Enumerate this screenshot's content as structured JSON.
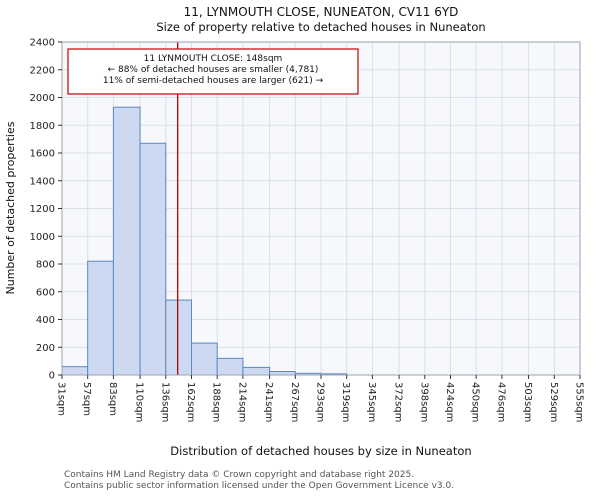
{
  "title": {
    "line1": "11, LYNMOUTH CLOSE, NUNEATON, CV11 6YD",
    "line2": "Size of property relative to detached houses in Nuneaton"
  },
  "footer": {
    "line1": "Contains HM Land Registry data © Crown copyright and database right 2025.",
    "line2": "Contains public sector information licensed under the Open Government Licence v3.0."
  },
  "chart_data": {
    "type": "bar",
    "histogram": true,
    "title": "11, LYNMOUTH CLOSE, NUNEATON, CV11 6YD — Size of property relative to detached houses in Nuneaton",
    "xlabel": "Distribution of detached houses by size in Nuneaton",
    "ylabel": "Number of detached properties",
    "bin_unit": "sqm",
    "bin_edges": [
      31,
      57,
      83,
      110,
      136,
      162,
      188,
      214,
      241,
      267,
      293,
      319,
      345,
      372,
      398,
      424,
      450,
      476,
      503,
      529,
      555
    ],
    "values": [
      60,
      820,
      1930,
      1670,
      540,
      230,
      120,
      55,
      25,
      12,
      8,
      0,
      0,
      0,
      0,
      0,
      0,
      0,
      0,
      0
    ],
    "xlim": [
      31,
      555
    ],
    "ylim": [
      0,
      2400
    ],
    "ytick_step": 200,
    "grid": true,
    "marker": {
      "value": 148,
      "label": "148sqm",
      "color": "#b30000"
    },
    "annotation": {
      "lines": [
        "11 LYNMOUTH CLOSE: 148sqm",
        "← 88% of detached houses are smaller (4,781)",
        "11% of semi-detached houses are larger (621) →"
      ],
      "border_color": "#cc0000"
    },
    "colors": {
      "bar_fill": "#ccd9f0",
      "bar_stroke": "#5b87c3",
      "grid": "#d9dfec",
      "plot_bg": "#f6f8fc",
      "axis": "#9aa4b5"
    }
  }
}
